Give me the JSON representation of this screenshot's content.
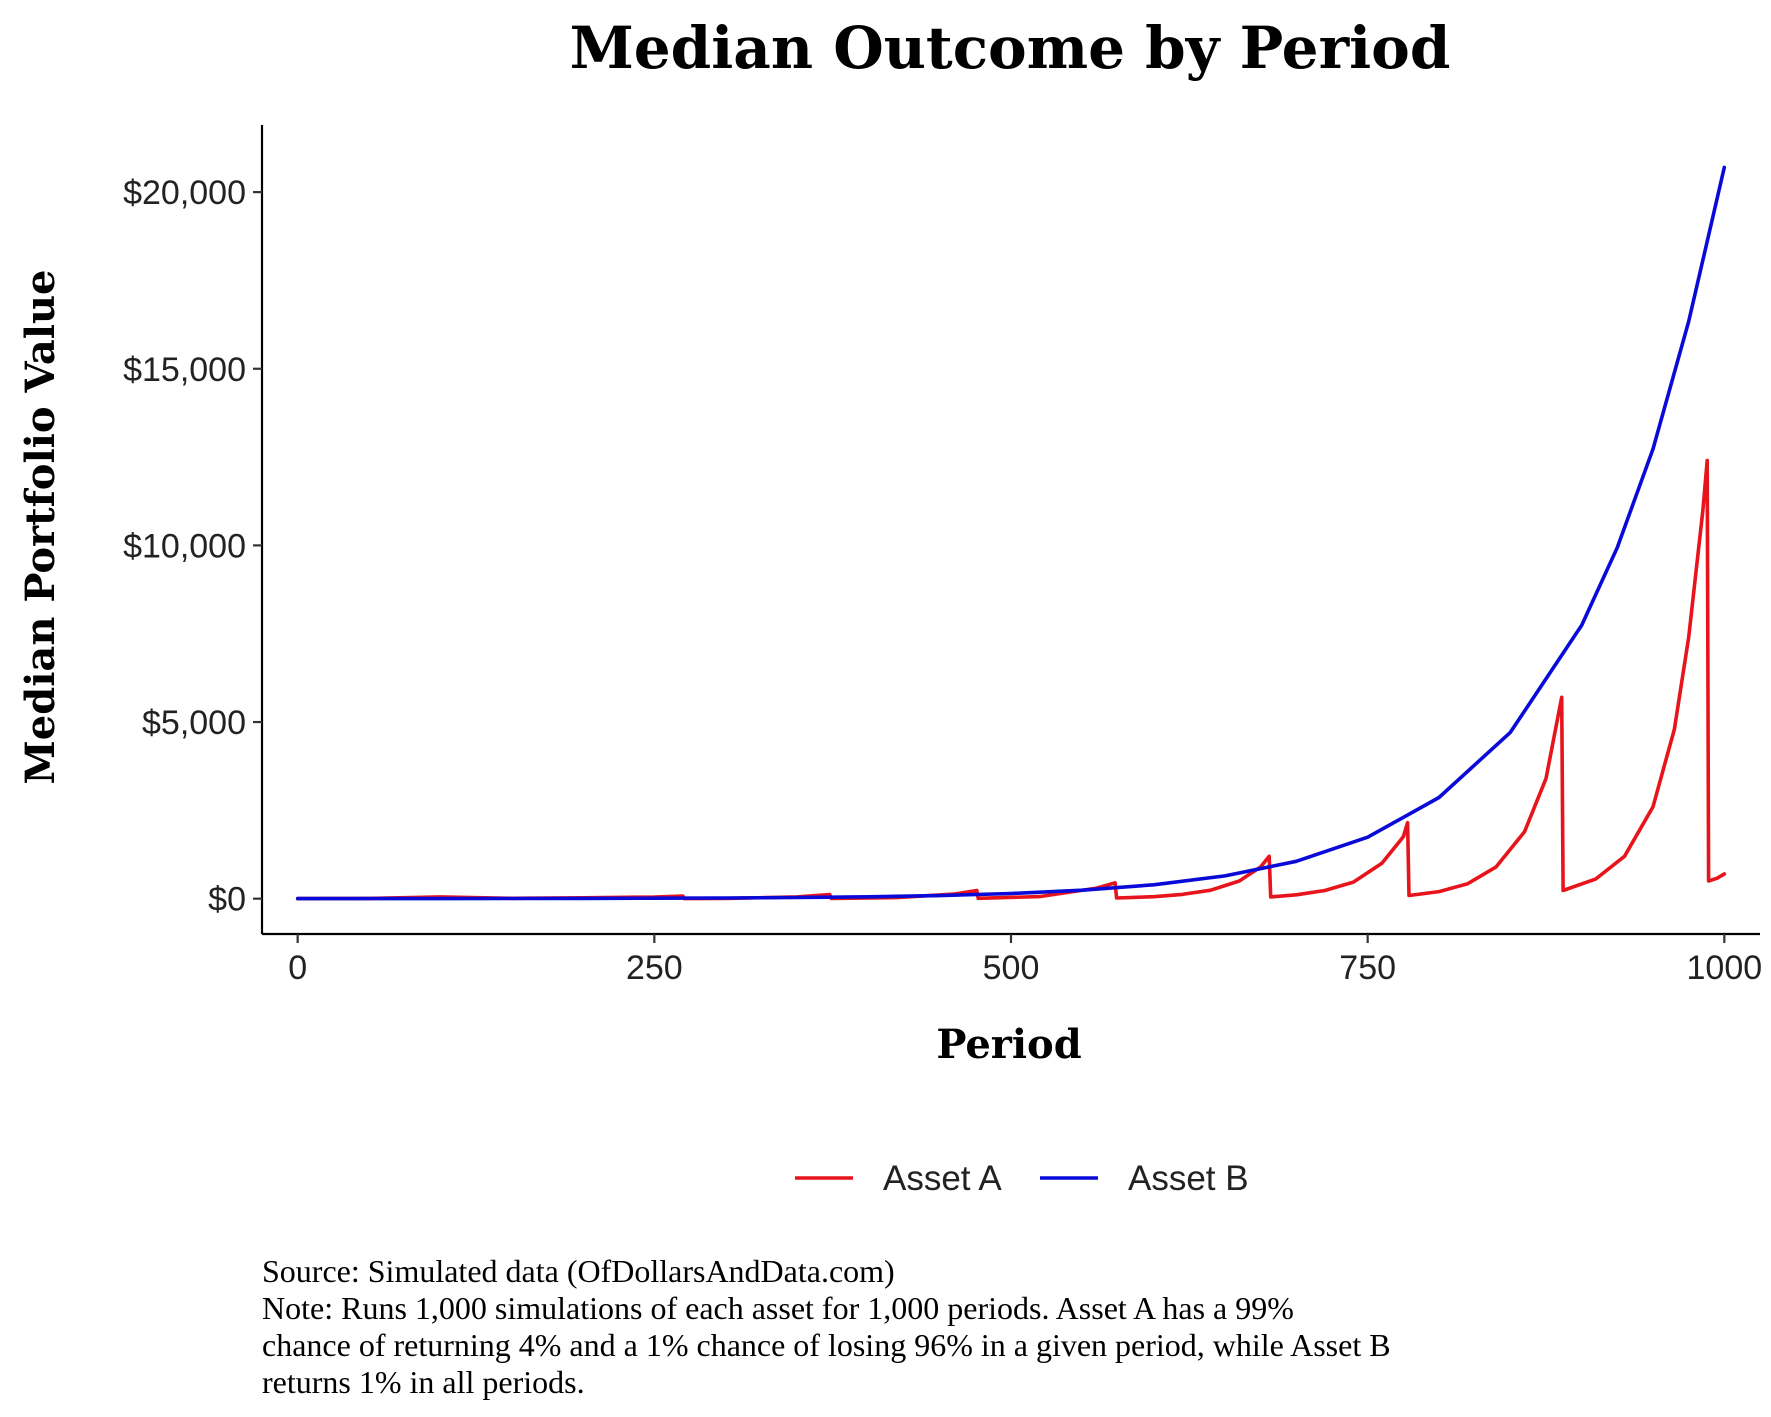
{
  "chart_data": {
    "type": "line",
    "title": "Median Outcome by Period",
    "xlabel": "Period",
    "ylabel": "Median Portfolio Value",
    "xlim": [
      -25,
      1025
    ],
    "ylim": [
      -1000,
      21900
    ],
    "x_ticks": [
      0,
      250,
      500,
      750,
      1000
    ],
    "x_tick_labels": [
      "0",
      "250",
      "500",
      "750",
      "1000"
    ],
    "y_ticks": [
      0,
      5000,
      10000,
      15000,
      20000
    ],
    "y_tick_labels": [
      "$0",
      "$5,000",
      "$10,000",
      "$15,000",
      "$20,000"
    ],
    "grid": false,
    "legend_position": "bottom",
    "series": [
      {
        "name": "Asset A",
        "color": "#e8141c",
        "points": [
          [
            0,
            1
          ],
          [
            50,
            7
          ],
          [
            100,
            49
          ],
          [
            150,
            10
          ],
          [
            200,
            24
          ],
          [
            250,
            47
          ],
          [
            270,
            75
          ],
          [
            271,
            3
          ],
          [
            300,
            9
          ],
          [
            350,
            50
          ],
          [
            373,
            115
          ],
          [
            374,
            5
          ],
          [
            420,
            30
          ],
          [
            460,
            130
          ],
          [
            476,
            230
          ],
          [
            477,
            10
          ],
          [
            520,
            60
          ],
          [
            560,
            300
          ],
          [
            573,
            450
          ],
          [
            574,
            18
          ],
          [
            600,
            55
          ],
          [
            620,
            120
          ],
          [
            640,
            240
          ],
          [
            660,
            500
          ],
          [
            675,
            900
          ],
          [
            681,
            1200
          ],
          [
            682,
            50
          ],
          [
            700,
            110
          ],
          [
            720,
            230
          ],
          [
            740,
            470
          ],
          [
            760,
            1000
          ],
          [
            775,
            1750
          ],
          [
            778,
            2150
          ],
          [
            779,
            90
          ],
          [
            800,
            200
          ],
          [
            820,
            420
          ],
          [
            840,
            900
          ],
          [
            860,
            1900
          ],
          [
            875,
            3400
          ],
          [
            886,
            5700
          ],
          [
            887,
            230
          ],
          [
            910,
            560
          ],
          [
            930,
            1200
          ],
          [
            950,
            2600
          ],
          [
            965,
            4800
          ],
          [
            975,
            7400
          ],
          [
            985,
            11000
          ],
          [
            988,
            12400
          ],
          [
            989,
            500
          ],
          [
            995,
            580
          ],
          [
            1000,
            700
          ]
        ]
      },
      {
        "name": "Asset B",
        "color": "#0a0ad8",
        "points": [
          [
            0,
            1
          ],
          [
            50,
            2
          ],
          [
            100,
            3
          ],
          [
            150,
            4
          ],
          [
            200,
            7
          ],
          [
            250,
            12
          ],
          [
            300,
            20
          ],
          [
            350,
            32
          ],
          [
            400,
            54
          ],
          [
            450,
            88
          ],
          [
            500,
            145
          ],
          [
            550,
            239
          ],
          [
            600,
            392
          ],
          [
            650,
            644
          ],
          [
            700,
            1059
          ],
          [
            750,
            1741
          ],
          [
            800,
            2863
          ],
          [
            850,
            4707
          ],
          [
            900,
            7740
          ],
          [
            925,
            9940
          ],
          [
            950,
            12730
          ],
          [
            975,
            16340
          ],
          [
            1000,
            20700
          ]
        ]
      }
    ]
  },
  "caption": {
    "source": "Source:  Simulated data (OfDollarsAndData.com)",
    "note_lines": [
      "Note: Runs 1,000 simulations of each asset for 1,000 periods. Asset A has a 99%",
      "chance of returning 4% and a 1% chance of losing 96% in a given period, while Asset B",
      "returns 1% in all periods."
    ]
  }
}
